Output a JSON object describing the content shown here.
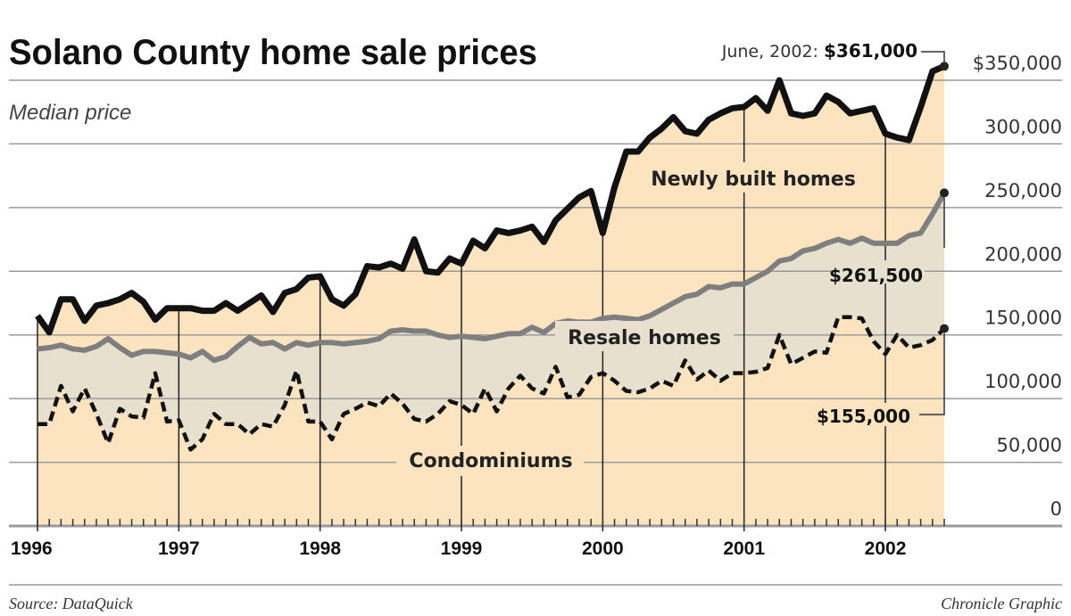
{
  "chart_data": {
    "type": "line",
    "title": "Solano County home sale prices",
    "subtitle": "Median price",
    "x_start": "1996-01",
    "x_end": "2002-06",
    "x_frequency": "monthly",
    "x_tick_labels": [
      "1996",
      "1997",
      "1998",
      "1999",
      "2000",
      "2001",
      "2002"
    ],
    "y_tick_labels": [
      "$350,000",
      "300,000",
      "250,000",
      "200,000",
      "150,000",
      "100,000",
      "50,000",
      "0"
    ],
    "ylim": [
      0,
      350000
    ],
    "grid": true,
    "colors": {
      "plot_fill": "#fce4c0",
      "band_fill": "#e7e0cf",
      "newly_built": "#111111",
      "resale": "#7f7f7f",
      "condominiums": "#111111",
      "grid": "#9a9a9a"
    },
    "series": [
      {
        "name": "Newly built homes",
        "style": "solid-black",
        "values": [
          165000,
          152000,
          178000,
          178000,
          161000,
          173000,
          175000,
          178000,
          183000,
          176000,
          162000,
          171000,
          171000,
          171000,
          169000,
          169000,
          175000,
          169000,
          175000,
          181000,
          168000,
          183000,
          186000,
          195000,
          196000,
          178000,
          173000,
          182000,
          204000,
          203000,
          206000,
          202000,
          225000,
          200000,
          199000,
          210000,
          206000,
          224000,
          218000,
          232000,
          230000,
          232000,
          235000,
          223000,
          240000,
          249000,
          258000,
          263000,
          230000,
          266000,
          294000,
          294000,
          305000,
          312000,
          321000,
          310000,
          308000,
          319000,
          324000,
          328000,
          329000,
          336000,
          326000,
          350000,
          324000,
          322000,
          324000,
          338000,
          333000,
          324000,
          326000,
          328000,
          308000,
          305000,
          303000,
          329000,
          357000,
          361000
        ]
      },
      {
        "name": "Resale homes",
        "style": "solid-gray",
        "values": [
          139000,
          140000,
          142000,
          139000,
          138000,
          141000,
          147000,
          140000,
          134000,
          137000,
          137000,
          136000,
          135000,
          132000,
          137000,
          130000,
          133000,
          141000,
          148000,
          143000,
          144000,
          139000,
          144000,
          142000,
          144000,
          144000,
          143000,
          144000,
          145000,
          147000,
          153000,
          154000,
          153000,
          153000,
          150000,
          148000,
          149000,
          148000,
          147000,
          149000,
          151000,
          151000,
          156000,
          152000,
          159000,
          161000,
          160000,
          160000,
          163000,
          164000,
          163000,
          162000,
          165000,
          170000,
          175000,
          180000,
          182000,
          188000,
          187000,
          190000,
          190000,
          195000,
          200000,
          208000,
          210000,
          216000,
          218000,
          222000,
          225000,
          222000,
          226000,
          222000,
          222000,
          222000,
          228000,
          230000,
          245000,
          261500
        ]
      },
      {
        "name": "Condominiums",
        "style": "dashed-black",
        "values": [
          80000,
          80000,
          110000,
          90000,
          108000,
          88000,
          65000,
          92000,
          86000,
          85000,
          120000,
          82000,
          83000,
          60000,
          68000,
          88000,
          80000,
          80000,
          72000,
          80000,
          78000,
          95000,
          122000,
          82000,
          82000,
          68000,
          88000,
          92000,
          97000,
          94000,
          104000,
          96000,
          84000,
          82000,
          88000,
          98000,
          95000,
          88000,
          108000,
          90000,
          108000,
          118000,
          108000,
          104000,
          125000,
          101000,
          103000,
          117000,
          120000,
          114000,
          106000,
          105000,
          108000,
          114000,
          110000,
          130000,
          115000,
          122000,
          114000,
          120000,
          120000,
          121000,
          124000,
          150000,
          127000,
          132000,
          137000,
          136000,
          164000,
          164000,
          163000,
          145000,
          135000,
          150000,
          140000,
          142000,
          146000,
          155000
        ]
      }
    ],
    "annotations": {
      "newly_built_prefix": "June, 2002: ",
      "newly_built_value": "$361,000",
      "resale_value": "$261,500",
      "condo_value": "$155,000"
    }
  },
  "footer": {
    "source": "Source: DataQuick",
    "credit": "Chronicle Graphic"
  }
}
